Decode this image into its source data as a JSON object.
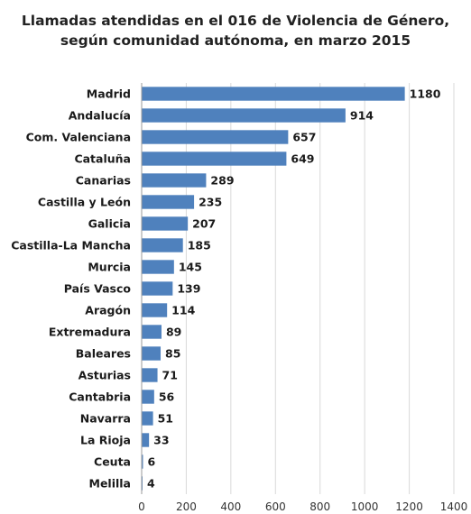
{
  "chart_data": {
    "type": "bar",
    "orientation": "horizontal",
    "title": [
      "Llamadas atendidas en el 016 de Violencia de Género,",
      "según comunidad autónoma, en marzo 2015"
    ],
    "categories": [
      "Madrid",
      "Andalucía",
      "Com. Valenciana",
      "Cataluña",
      "Canarias",
      "Castilla y León",
      "Galicia",
      "Castilla-La Mancha",
      "Murcia",
      "País Vasco",
      "Aragón",
      "Extremadura",
      "Baleares",
      "Asturias",
      "Cantabria",
      "Navarra",
      "La Rioja",
      "Ceuta",
      "Melilla"
    ],
    "values": [
      1180,
      914,
      657,
      649,
      289,
      235,
      207,
      185,
      145,
      139,
      114,
      89,
      85,
      71,
      56,
      51,
      33,
      6,
      4
    ],
    "xlim": [
      0,
      1400
    ],
    "xticks": [
      0,
      200,
      400,
      600,
      800,
      1000,
      1200,
      1400
    ],
    "grid": true,
    "data_labels": true,
    "bar_color": "#4f81bd"
  }
}
